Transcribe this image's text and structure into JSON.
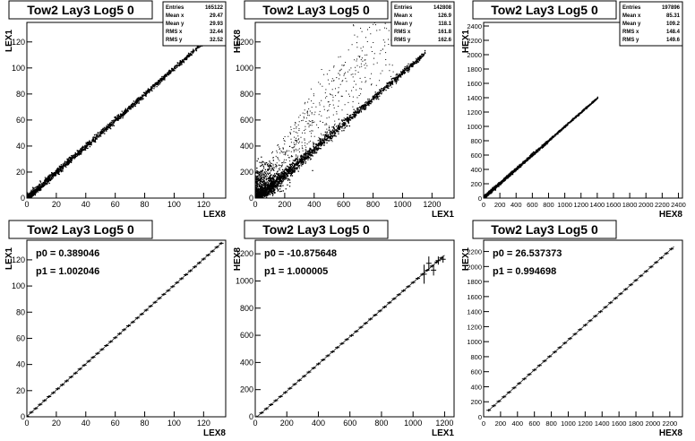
{
  "chart_data": [
    {
      "type": "scatter",
      "title": "Tow2 Lay3 Log5 0",
      "xlabel": "LEX8",
      "ylabel": "LEX1",
      "xlim": [
        0,
        135
      ],
      "ylim": [
        0,
        135
      ],
      "xticks": [
        0,
        20,
        40,
        60,
        80,
        100,
        120
      ],
      "yticks": [
        0,
        20,
        40,
        60,
        80,
        100,
        120
      ],
      "stats": [
        {
          "label": "Entries",
          "value": "165122"
        },
        {
          "label": "Mean x",
          "value": "29.47"
        },
        {
          "label": "Mean y",
          "value": "29.93"
        },
        {
          "label": "RMS x",
          "value": "32.44"
        },
        {
          "label": "RMS y",
          "value": "32.52"
        }
      ],
      "trend": {
        "slope": 1.0,
        "intercept": 0.4
      },
      "x_range": [
        0,
        132
      ],
      "spread": 1.5,
      "scatter": 0.0
    },
    {
      "type": "scatter",
      "title": "Tow2 Lay3 Log5 0",
      "xlabel": "LEX1",
      "ylabel": "HEX8",
      "xlim": [
        0,
        1350
      ],
      "ylim": [
        0,
        1350
      ],
      "xticks": [
        0,
        200,
        400,
        600,
        800,
        1000,
        1200
      ],
      "yticks": [
        0,
        200,
        400,
        600,
        800,
        1000,
        1200
      ],
      "stats": [
        {
          "label": "Entries",
          "value": "142808"
        },
        {
          "label": "Mean x",
          "value": "126.9"
        },
        {
          "label": "Mean y",
          "value": "118.1"
        },
        {
          "label": "RMS x",
          "value": "161.8"
        },
        {
          "label": "RMS y",
          "value": "162.6"
        }
      ],
      "trend": {
        "slope": 0.98,
        "intercept": -10
      },
      "x_range": [
        0,
        1150
      ],
      "spread": 25,
      "scatter": 0.35
    },
    {
      "type": "scatter",
      "title": "Tow2 Lay3 Log5 0",
      "xlabel": "HEX8",
      "ylabel": "HEX1",
      "xlim": [
        0,
        2450
      ],
      "ylim": [
        0,
        2450
      ],
      "xticks": [
        0,
        200,
        400,
        600,
        800,
        1000,
        1200,
        1400,
        1600,
        1800,
        2000,
        2200,
        2400
      ],
      "yticks": [
        0,
        200,
        400,
        600,
        800,
        1000,
        1200,
        1400,
        1600,
        1800,
        2000,
        2200,
        2400
      ],
      "stats": [
        {
          "label": "Entries",
          "value": "197896"
        },
        {
          "label": "Mean x",
          "value": "85.31"
        },
        {
          "label": "Mean y",
          "value": "109.2"
        },
        {
          "label": "RMS x",
          "value": "148.4"
        },
        {
          "label": "RMS y",
          "value": "149.6"
        }
      ],
      "trend": {
        "slope": 0.99,
        "intercept": 20
      },
      "x_range": [
        0,
        1400
      ],
      "spread": 12,
      "scatter": 0.0
    },
    {
      "type": "line",
      "title": "Tow2 Lay3 Log5 0",
      "xlabel": "LEX8",
      "ylabel": "LEX1",
      "xlim": [
        0,
        135
      ],
      "ylim": [
        0,
        135
      ],
      "xticks": [
        0,
        20,
        40,
        60,
        80,
        100,
        120
      ],
      "yticks": [
        0,
        20,
        40,
        60,
        80,
        100,
        120
      ],
      "fit": [
        {
          "label": "p0",
          "value": "0.389046"
        },
        {
          "label": "p1",
          "value": "1.002046"
        }
      ],
      "p0": 0.389046,
      "p1": 1.002046,
      "x_range": [
        0,
        132
      ],
      "step": 3
    },
    {
      "type": "line",
      "title": "Tow2 Lay3 Log5 0",
      "xlabel": "LEX1",
      "ylabel": "HEX8",
      "xlim": [
        0,
        1260
      ],
      "ylim": [
        0,
        1300
      ],
      "xticks": [
        0,
        200,
        400,
        600,
        800,
        1000,
        1200
      ],
      "yticks": [
        0,
        200,
        400,
        600,
        800,
        1000,
        1200
      ],
      "fit": [
        {
          "label": "p0",
          "value": "-10.875648"
        },
        {
          "label": "p1",
          "value": "1.000005"
        }
      ],
      "p0": -10.875648,
      "p1": 1.000005,
      "x_range": [
        10,
        1200
      ],
      "step": 30
    },
    {
      "type": "line",
      "title": "Tow2 Lay3 Log5 0",
      "xlabel": "HEX8",
      "ylabel": "HEX1",
      "xlim": [
        0,
        2350
      ],
      "ylim": [
        0,
        2350
      ],
      "xticks": [
        0,
        200,
        400,
        600,
        800,
        1000,
        1200,
        1400,
        1600,
        1800,
        2000,
        2200
      ],
      "yticks": [
        0,
        200,
        400,
        600,
        800,
        1000,
        1200,
        1400,
        1600,
        1800,
        2000,
        2200
      ],
      "fit": [
        {
          "label": "p0",
          "value": "26.537373"
        },
        {
          "label": "p1",
          "value": "0.994698"
        }
      ],
      "p0": 26.537373,
      "p1": 0.994698,
      "x_range": [
        60,
        2250
      ],
      "step": 60
    }
  ]
}
